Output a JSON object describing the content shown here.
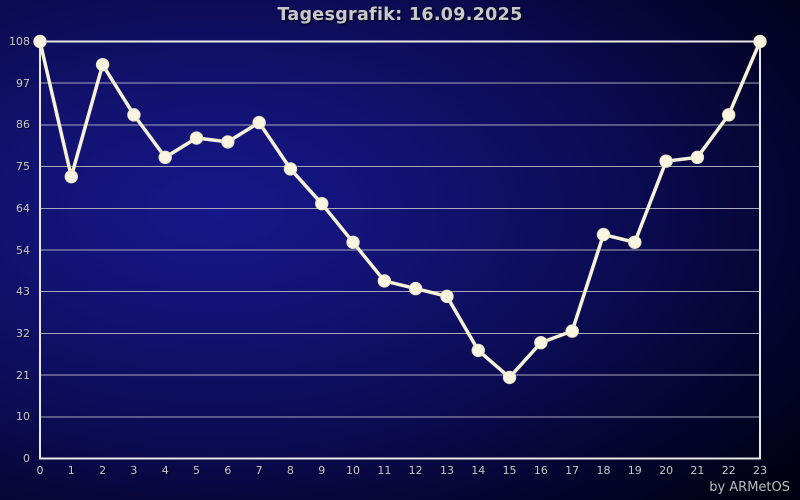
{
  "title": "Tagesgrafik: 16.09.2025",
  "credit": "by ARMetOS",
  "colors": {
    "line": "#f6f1d9",
    "marker_fill": "#faf5e0",
    "marker_edge": "#e9e2c4",
    "grid": "#a8a8bb",
    "frame": "#e8e8e8",
    "title_text": "#c9c9c9",
    "label_text": "#c6c6cf",
    "bg_center": "#17178c",
    "bg_edge": "#000010"
  },
  "chart_data": {
    "type": "line",
    "title": "Tagesgrafik: 16.09.2025",
    "x": [
      0,
      1,
      2,
      3,
      4,
      5,
      6,
      7,
      8,
      9,
      10,
      11,
      12,
      13,
      14,
      15,
      16,
      17,
      18,
      19,
      20,
      21,
      22,
      23
    ],
    "values": [
      108,
      73,
      102,
      89,
      78,
      83,
      82,
      87,
      75,
      66,
      56,
      46,
      44,
      42,
      28,
      21,
      30,
      33,
      58,
      56,
      77,
      78,
      89,
      108
    ],
    "xlabel": "",
    "ylabel": "",
    "ylim": [
      0,
      108
    ],
    "xtick_labels": [
      "0",
      "1",
      "2",
      "3",
      "4",
      "5",
      "6",
      "7",
      "8",
      "9",
      "10",
      "11",
      "12",
      "13",
      "14",
      "15",
      "16",
      "17",
      "18",
      "19",
      "20",
      "21",
      "22",
      "23"
    ],
    "ytick_labels": [
      "0",
      "10",
      "21",
      "32",
      "43",
      "54",
      "64",
      "75",
      "86",
      "97",
      "108"
    ],
    "ytick_step": 10.8,
    "grid": "horizontal",
    "legend": "none",
    "marker": "circle"
  }
}
